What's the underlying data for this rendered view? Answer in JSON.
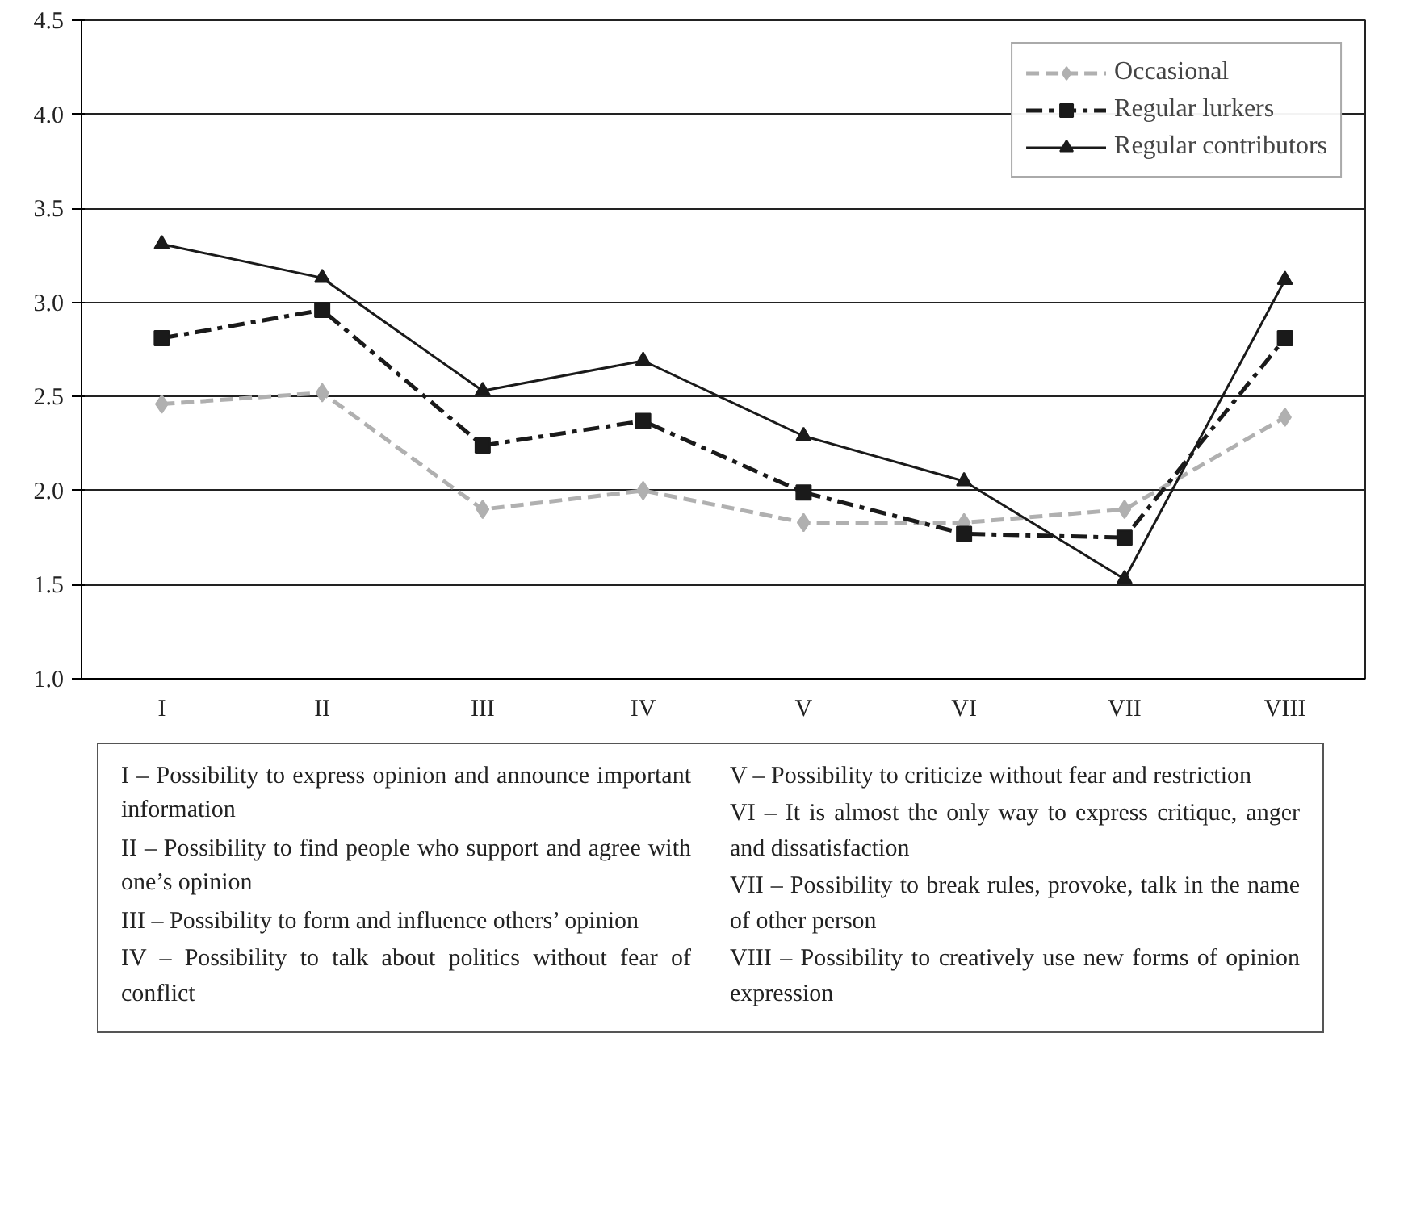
{
  "chart_data": {
    "type": "line",
    "categories": [
      "I",
      "II",
      "III",
      "IV",
      "V",
      "VI",
      "VII",
      "VIII"
    ],
    "series": [
      {
        "name": "Occasional",
        "color": "#b0b0b0",
        "marker": "diamond",
        "line_style": "dashed",
        "values": [
          2.46,
          2.52,
          1.9,
          2.0,
          1.83,
          1.83,
          1.9,
          2.39
        ]
      },
      {
        "name": "Regular lurkers",
        "color": "#1a1a1a",
        "marker": "square",
        "line_style": "dashdot",
        "values": [
          2.81,
          2.96,
          2.24,
          2.37,
          1.99,
          1.77,
          1.75,
          2.81
        ]
      },
      {
        "name": "Regular contributors",
        "color": "#1a1a1a",
        "marker": "triangle",
        "line_style": "solid",
        "values": [
          3.31,
          3.13,
          2.53,
          2.69,
          2.29,
          2.05,
          1.53,
          3.12
        ]
      }
    ],
    "ylim": [
      1.0,
      4.5
    ],
    "yticks": [
      {
        "value": 1.0,
        "label": "1.0"
      },
      {
        "value": 1.5,
        "label": "1.5"
      },
      {
        "value": 2.0,
        "label": "2.0"
      },
      {
        "value": 2.5,
        "label": "2.5"
      },
      {
        "value": 3.0,
        "label": "3.0"
      },
      {
        "value": 3.5,
        "label": "3.5"
      },
      {
        "value": 4.0,
        "label": "4.0"
      },
      {
        "value": 4.5,
        "label": "4.5"
      }
    ],
    "grid": "y",
    "legend": "top right",
    "annotations": [
      "I – Possibility to express opinion and announce important information",
      "II – Possibility to find people who support and agree with one’s opinion",
      "III – Possibility to form and influence others’ opinion",
      "IV – Possibility to talk about politics without fear of conflict",
      "V – Possibility to criticize without fear and restriction",
      "VI – It is almost the only way to express critique, anger and dissatisfaction",
      "VII – Possibility to break rules, provoke, talk in the name of other person",
      "VIII – Possibility to creatively use new forms of opinion expression"
    ]
  }
}
